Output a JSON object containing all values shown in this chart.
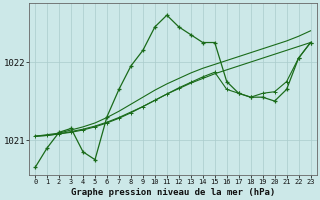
{
  "title": "Graphe pression niveau de la mer (hPa)",
  "bg_color": "#cce8e8",
  "grid_color": "#aacccc",
  "line_color": "#1a6b1a",
  "xlim": [
    -0.5,
    23.5
  ],
  "ylim": [
    1020.55,
    1022.75
  ],
  "yticks": [
    1021,
    1022
  ],
  "ytick_labels": [
    "1021",
    "1022"
  ],
  "x_labels": [
    "0",
    "1",
    "2",
    "3",
    "4",
    "5",
    "6",
    "7",
    "8",
    "9",
    "10",
    "11",
    "12",
    "13",
    "14",
    "15",
    "16",
    "17",
    "18",
    "19",
    "20",
    "21",
    "22",
    "23"
  ],
  "series_main": [
    1020.65,
    1020.9,
    1021.1,
    1021.15,
    1020.85,
    1020.75,
    1021.3,
    1021.65,
    1021.95,
    1022.15,
    1022.45,
    1022.6,
    1022.45,
    1022.35,
    1022.25,
    1022.25,
    1021.75,
    1021.6,
    1021.55,
    1021.55,
    1021.5,
    1021.65,
    1022.05,
    1022.25
  ],
  "series_trend1": [
    1021.05,
    1021.07,
    1021.09,
    1021.13,
    1021.17,
    1021.22,
    1021.29,
    1021.37,
    1021.46,
    1021.55,
    1021.64,
    1021.72,
    1021.79,
    1021.86,
    1021.92,
    1021.97,
    1022.02,
    1022.07,
    1022.12,
    1022.17,
    1022.22,
    1022.27,
    1022.33,
    1022.4
  ],
  "series_trend2": [
    1021.05,
    1021.06,
    1021.08,
    1021.11,
    1021.14,
    1021.18,
    1021.23,
    1021.29,
    1021.36,
    1021.43,
    1021.51,
    1021.59,
    1021.66,
    1021.73,
    1021.79,
    1021.85,
    1021.9,
    1021.95,
    1022.0,
    1022.05,
    1022.1,
    1022.15,
    1022.2,
    1022.25
  ],
  "series_trend3": [
    1021.05,
    1021.06,
    1021.08,
    1021.1,
    1021.13,
    1021.17,
    1021.22,
    1021.28,
    1021.35,
    1021.43,
    1021.51,
    1021.59,
    1021.67,
    1021.74,
    1021.81,
    1021.87,
    1021.65,
    1021.6,
    1021.55,
    1021.6,
    1021.62,
    1021.75,
    1022.05,
    1022.25
  ]
}
